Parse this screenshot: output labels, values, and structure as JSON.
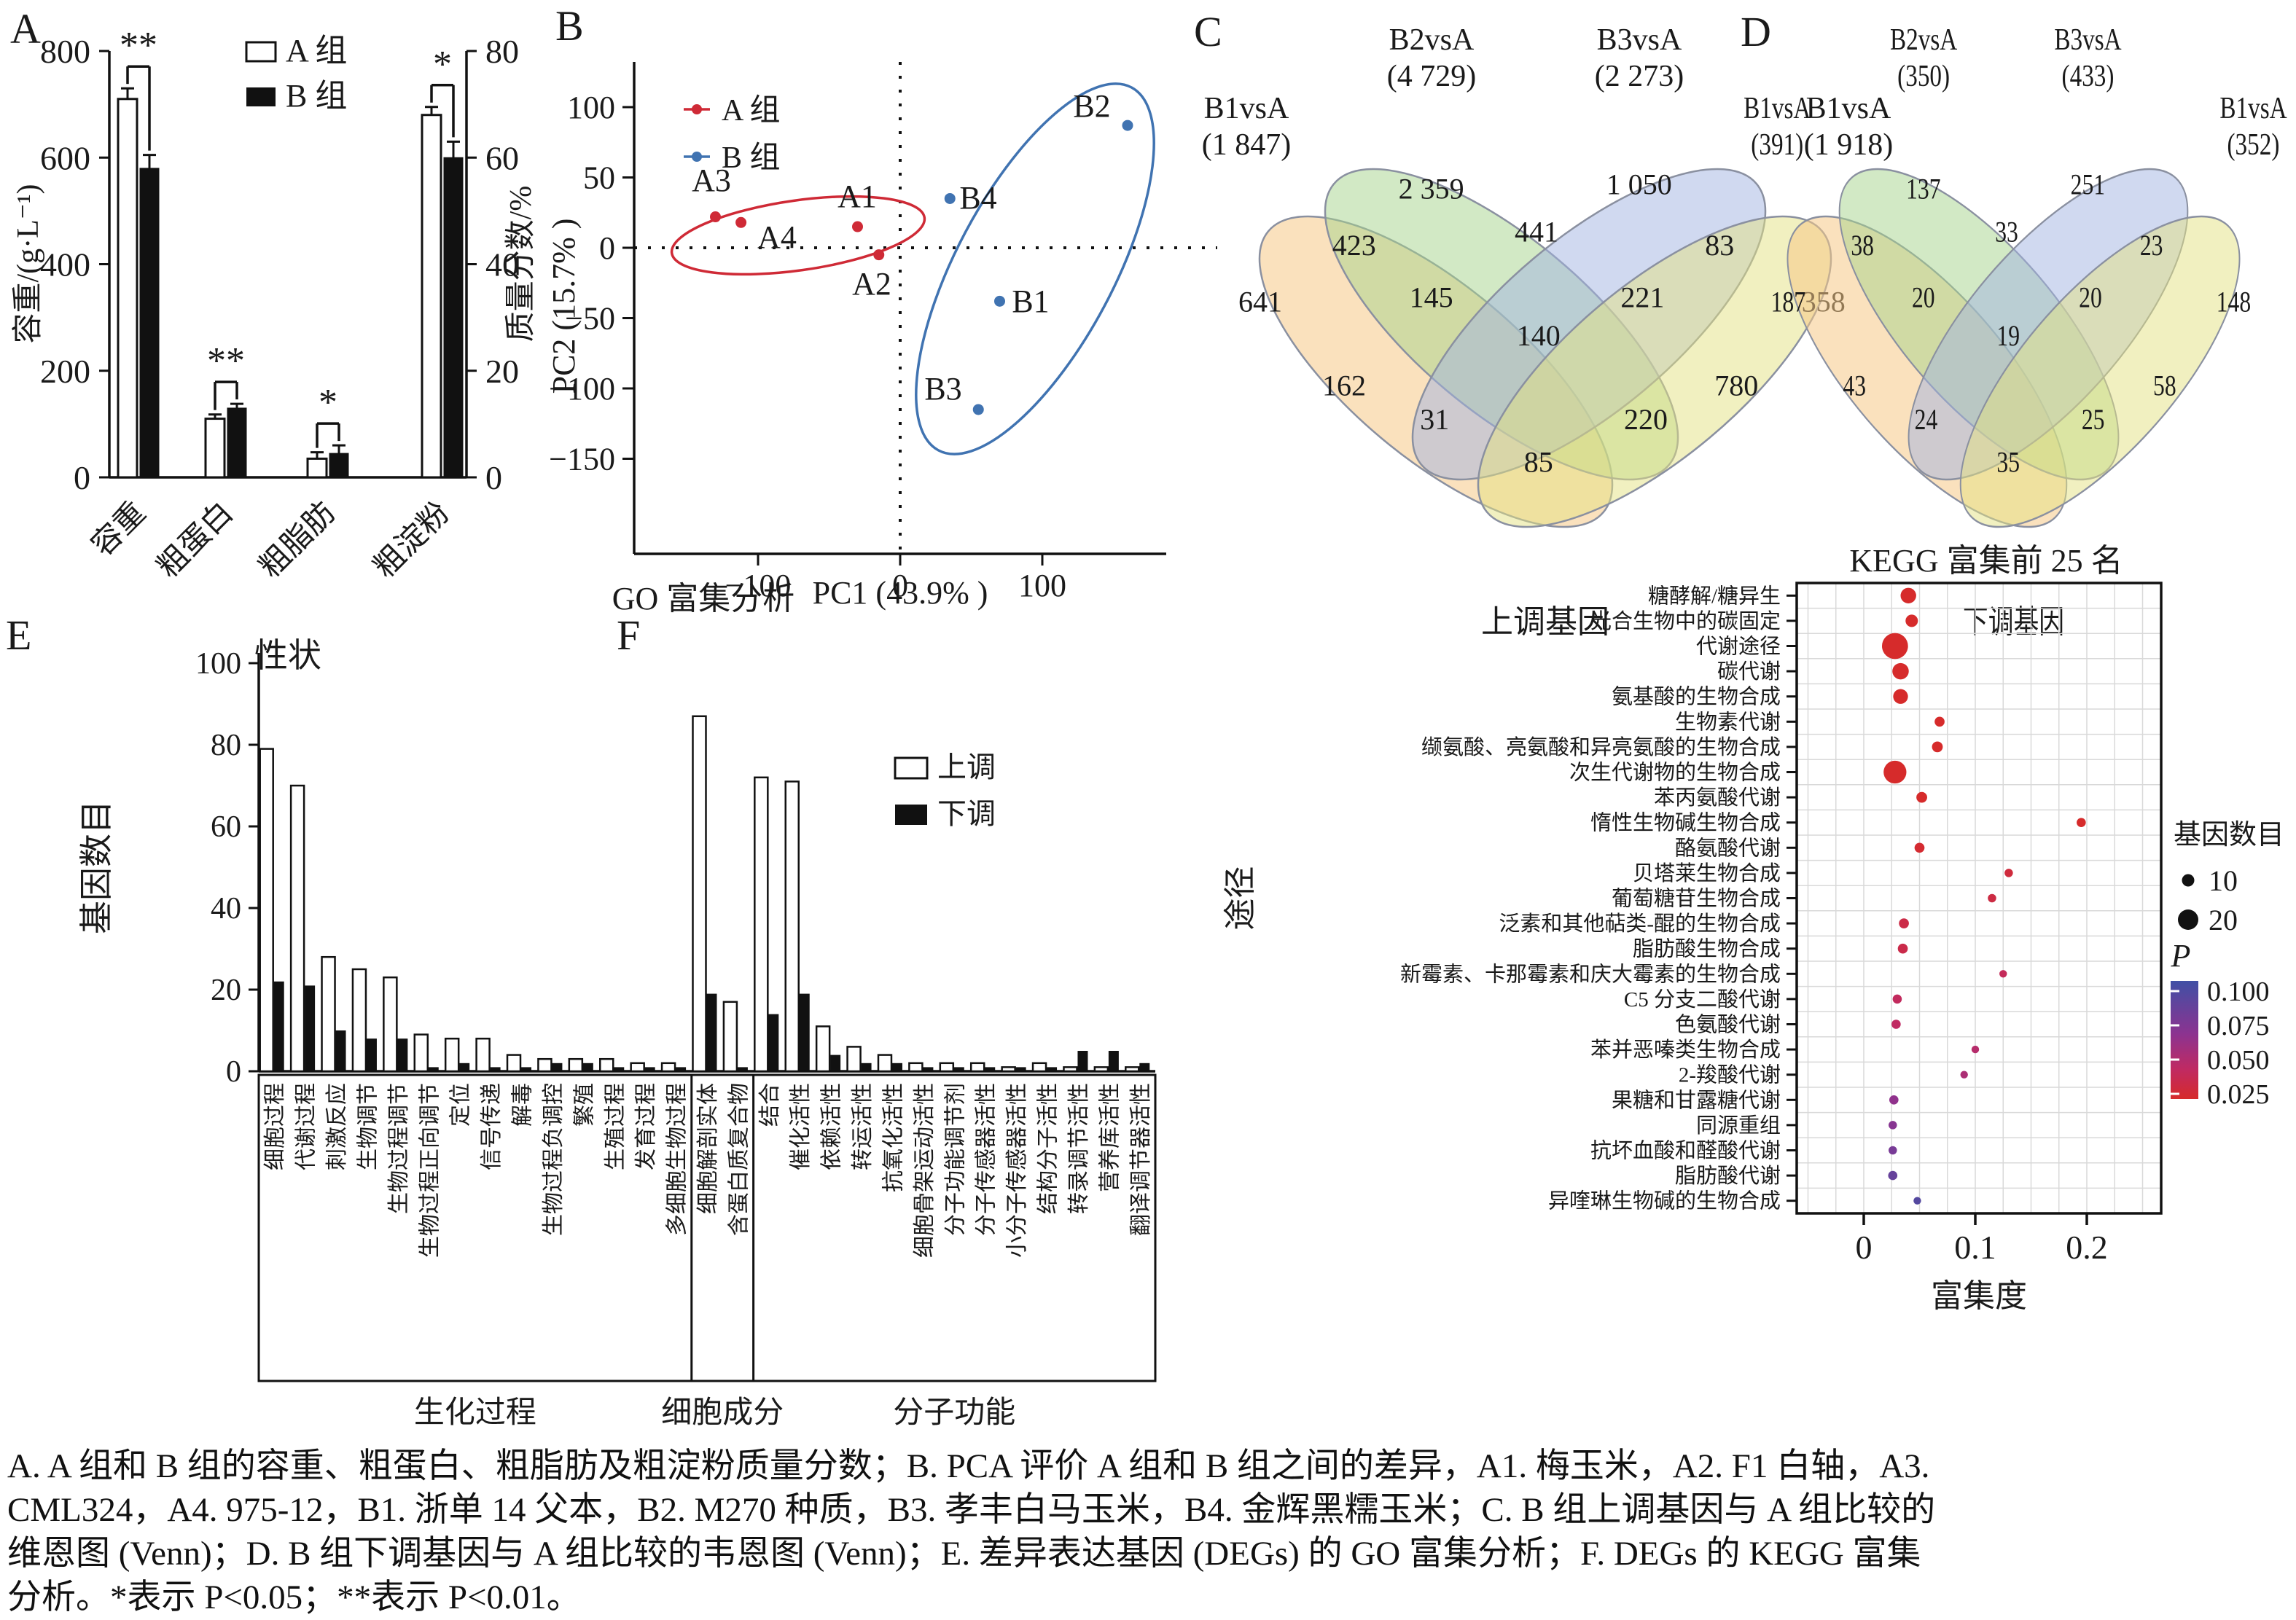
{
  "figure": {
    "panel_letters": [
      "A",
      "B",
      "C",
      "D",
      "E",
      "F"
    ],
    "caption_lines": [
      "A. A 组和 B 组的容重、粗蛋白、粗脂肪及粗淀粉质量分数；B. PCA 评价 A 组和 B 组之间的差异，A1. 梅玉米，A2. F1 白轴，A3.",
      "CML324，A4. 975-12，B1. 浙单 14 父本，B2. M270 种质，B3. 孝丰白马玉米，B4. 金辉黑糯玉米；C. B 组上调基因与 A 组比较的",
      "维恩图 (Venn)；D. B 组下调基因与 A 组比较的韦恩图 (Venn)；E. 差异表达基因 (DEGs) 的 GO 富集分析；F. DEGs 的 KEGG 富集",
      "分析。*表示 P<0.05；**表示 P<0.01。"
    ]
  },
  "colors": {
    "series_red": "#cf2a36",
    "series_blue": "#4073b1",
    "venn_fills": [
      "rgba(246,201,134,0.55)",
      "rgba(165,212,140,0.50)",
      "rgba(162,180,226,0.50)",
      "rgba(228,226,130,0.50)"
    ],
    "venn_stroke": "#8a90a0",
    "p_color_stops": [
      [
        0.015,
        "#d62b2b"
      ],
      [
        0.045,
        "#c02a62"
      ],
      [
        0.07,
        "#8c3390"
      ],
      [
        0.1,
        "#4050a5"
      ]
    ]
  },
  "chart_data": [
    {
      "id": "A",
      "type": "bar",
      "categories": [
        "容重",
        "粗蛋白",
        "粗脂肪",
        "粗淀粉"
      ],
      "category_axis": [
        "left",
        "right",
        "right",
        "right"
      ],
      "series": [
        {
          "name": "A 组",
          "fill": "white",
          "values": [
            710,
            11,
            3.5,
            68
          ],
          "errors": [
            20,
            0.8,
            1.2,
            1.5
          ]
        },
        {
          "name": "B 组",
          "fill": "black",
          "values": [
            580,
            13,
            4.5,
            60
          ],
          "errors": [
            25,
            0.8,
            1.5,
            3
          ]
        }
      ],
      "significance": [
        "**",
        "**",
        "*",
        "*"
      ],
      "ylabel_left": "容重/(g·L⁻¹)",
      "ylabel_right": "质量分数/%",
      "xlabel": "性状",
      "ylim_left": [
        0,
        800
      ],
      "yticks_left": [
        0,
        200,
        400,
        600,
        800
      ],
      "ylim_right": [
        0,
        80
      ],
      "yticks_right": [
        0,
        20,
        40,
        60,
        80
      ]
    },
    {
      "id": "B",
      "type": "scatter",
      "xlabel": "PC1 (43.9% )",
      "ylabel": "PC2 (15.7% )",
      "xticks": [
        "−100",
        "0",
        "100"
      ],
      "xtick_values": [
        -100,
        0,
        100
      ],
      "yticks": [
        "100",
        "50",
        "0",
        "−50",
        "−100",
        "−150"
      ],
      "ytick_values": [
        100,
        50,
        0,
        -50,
        -100,
        -150
      ],
      "legend": [
        "A 组",
        "B 组"
      ],
      "series": [
        {
          "name": "A 组",
          "color_key": "series_red",
          "points": [
            {
              "label": "A1",
              "x": -30,
              "y": 15
            },
            {
              "label": "A2",
              "x": -15,
              "y": -5
            },
            {
              "label": "A3",
              "x": -130,
              "y": 22
            },
            {
              "label": "A4",
              "x": -112,
              "y": 18
            }
          ]
        },
        {
          "name": "B 组",
          "color_key": "series_blue",
          "points": [
            {
              "label": "B1",
              "x": 70,
              "y": -38
            },
            {
              "label": "B2",
              "x": 160,
              "y": 87
            },
            {
              "label": "B3",
              "x": 55,
              "y": -115
            },
            {
              "label": "B4",
              "x": 35,
              "y": 35
            }
          ]
        }
      ]
    },
    {
      "id": "C",
      "type": "venn4",
      "bottom_caption": "上调基因",
      "sets": [
        {
          "name": "B1vsA",
          "count": "(1 847)"
        },
        {
          "name": "B2vsA",
          "count": "(4 729)"
        },
        {
          "name": "B3vsA",
          "count": "(2 273)"
        },
        {
          "name": "B1vsA",
          "count": "(1 918)"
        }
      ],
      "regions": [
        {
          "segment": "set1_only",
          "value": "641",
          "fx": 0.075,
          "fy": 0.38
        },
        {
          "segment": "set2_only",
          "value": "2 359",
          "fx": 0.33,
          "fy": 0.13
        },
        {
          "segment": "set3_only",
          "value": "1 050",
          "fx": 0.64,
          "fy": 0.12
        },
        {
          "segment": "set4_only",
          "value": "358",
          "fx": 0.915,
          "fy": 0.38
        },
        {
          "segment": "set1_set2",
          "value": "423",
          "fx": 0.215,
          "fy": 0.255
        },
        {
          "segment": "set2_set3",
          "value": "441",
          "fx": 0.487,
          "fy": 0.225
        },
        {
          "segment": "set3_set4",
          "value": "83",
          "fx": 0.76,
          "fy": 0.255
        },
        {
          "segment": "set1_set2_set3",
          "value": "145",
          "fx": 0.33,
          "fy": 0.37
        },
        {
          "segment": "set2_set3_set4",
          "value": "221",
          "fx": 0.645,
          "fy": 0.37
        },
        {
          "segment": "all_four",
          "value": "140",
          "fx": 0.49,
          "fy": 0.455
        },
        {
          "segment": "set1_set3",
          "value": "162",
          "fx": 0.2,
          "fy": 0.565
        },
        {
          "segment": "set2_set4",
          "value": "780",
          "fx": 0.785,
          "fy": 0.565
        },
        {
          "segment": "set1_set3_set4",
          "value": "31",
          "fx": 0.335,
          "fy": 0.64
        },
        {
          "segment": "set1_set2_set4",
          "value": "220",
          "fx": 0.65,
          "fy": 0.64
        },
        {
          "segment": "set1_set4",
          "value": "85",
          "fx": 0.49,
          "fy": 0.735
        }
      ]
    },
    {
      "id": "D",
      "type": "venn4",
      "bottom_caption": "下调基因",
      "sets": [
        {
          "name": "B1vsA",
          "count": "(391)"
        },
        {
          "name": "B2vsA",
          "count": "(350)"
        },
        {
          "name": "B3vsA",
          "count": "(433)"
        },
        {
          "name": "B1vsA",
          "count": "(352)"
        }
      ],
      "regions": [
        {
          "segment": "set1_only",
          "value": "187",
          "fx": 0.075,
          "fy": 0.38
        },
        {
          "segment": "set2_only",
          "value": "137",
          "fx": 0.33,
          "fy": 0.13
        },
        {
          "segment": "set3_only",
          "value": "251",
          "fx": 0.64,
          "fy": 0.12
        },
        {
          "segment": "set4_only",
          "value": "148",
          "fx": 0.915,
          "fy": 0.38
        },
        {
          "segment": "set1_set2",
          "value": "38",
          "fx": 0.215,
          "fy": 0.255
        },
        {
          "segment": "set2_set3",
          "value": "33",
          "fx": 0.487,
          "fy": 0.225
        },
        {
          "segment": "set3_set4",
          "value": "23",
          "fx": 0.76,
          "fy": 0.255
        },
        {
          "segment": "set1_set2_set3",
          "value": "20",
          "fx": 0.33,
          "fy": 0.37
        },
        {
          "segment": "set2_set3_set4",
          "value": "20",
          "fx": 0.645,
          "fy": 0.37
        },
        {
          "segment": "all_four",
          "value": "19",
          "fx": 0.49,
          "fy": 0.455
        },
        {
          "segment": "set1_set3",
          "value": "43",
          "fx": 0.2,
          "fy": 0.565
        },
        {
          "segment": "set2_set4",
          "value": "58",
          "fx": 0.785,
          "fy": 0.565
        },
        {
          "segment": "set1_set3_set4",
          "value": "24",
          "fx": 0.335,
          "fy": 0.64
        },
        {
          "segment": "set1_set2_set4",
          "value": "25",
          "fx": 0.65,
          "fy": 0.64
        },
        {
          "segment": "set1_set4",
          "value": "35",
          "fx": 0.49,
          "fy": 0.735
        }
      ]
    },
    {
      "id": "E",
      "type": "bar",
      "title": "GO 富集分析",
      "ylabel": "基因数目",
      "ylim": [
        0,
        100
      ],
      "yticks": [
        0,
        20,
        40,
        60,
        80,
        100
      ],
      "legend": [
        "上调",
        "下调"
      ],
      "groups": [
        {
          "name": "生化过程",
          "categories": [
            "细胞过程",
            "代谢过程",
            "刺激反应",
            "生物调节",
            "生物过程调节",
            "生物过程正向调节",
            "定位",
            "信号传递",
            "解毒",
            "生物过程负调控",
            "繁殖",
            "生殖过程",
            "发育过程",
            "多细胞生物过程"
          ],
          "up": [
            79,
            70,
            28,
            25,
            23,
            9,
            8,
            8,
            4,
            3,
            3,
            3,
            2,
            2
          ],
          "down": [
            22,
            21,
            10,
            8,
            8,
            1,
            2,
            1,
            1,
            2,
            2,
            1,
            1,
            1
          ]
        },
        {
          "name": "细胞成分",
          "categories": [
            "细胞解剖实体",
            "含蛋白质复合物"
          ],
          "up": [
            87,
            17
          ],
          "down": [
            19,
            1
          ]
        },
        {
          "name": "分子功能",
          "categories": [
            "结合",
            "催化活性",
            "依赖活性",
            "转运活性",
            "抗氧化活性",
            "细胞骨架运动活性",
            "分子功能调节剂",
            "分子传感器活性",
            "小分子传感器活性",
            "结构分子活性",
            "转录调节活性",
            "营养库活性",
            "翻译调节器活性"
          ],
          "up": [
            72,
            71,
            11,
            6,
            4,
            2,
            2,
            2,
            1,
            2,
            1,
            1,
            1
          ],
          "down": [
            14,
            19,
            4,
            2,
            2,
            1,
            1,
            1,
            1,
            1,
            5,
            5,
            2
          ]
        }
      ]
    },
    {
      "id": "F",
      "type": "scatter",
      "title": "KEGG 富集前 25 名",
      "xlabel": "富集度",
      "ylabel": "途径",
      "xticks": [
        "0",
        "0.1",
        "0.2"
      ],
      "xtick_values": [
        0,
        0.1,
        0.2
      ],
      "xlim": [
        -0.06,
        0.267
      ],
      "legend_size_title": "基因数目",
      "legend_sizes": [
        10,
        20
      ],
      "legend_p_label": "P",
      "colorbar_ticks": [
        "0.100",
        "0.075",
        "0.050",
        "0.025"
      ],
      "pathways": [
        {
          "name": "糖酵解/糖异生",
          "enrichment": 0.04,
          "genes": 14,
          "p": 0.004
        },
        {
          "name": "光合生物中的碳固定",
          "enrichment": 0.043,
          "genes": 10,
          "p": 0.004
        },
        {
          "name": "代谢途径",
          "enrichment": 0.028,
          "genes": 27,
          "p": 0.002
        },
        {
          "name": "碳代谢",
          "enrichment": 0.033,
          "genes": 15,
          "p": 0.004
        },
        {
          "name": "氨基酸的生物合成",
          "enrichment": 0.033,
          "genes": 13,
          "p": 0.006
        },
        {
          "name": "生物素代谢",
          "enrichment": 0.068,
          "genes": 7,
          "p": 0.008
        },
        {
          "name": "缬氨酸、亮氨酸和异亮氨酸的生物合成",
          "enrichment": 0.066,
          "genes": 8,
          "p": 0.01
        },
        {
          "name": "次生代谢物的生物合成",
          "enrichment": 0.028,
          "genes": 23,
          "p": 0.003
        },
        {
          "name": "苯丙氨酸代谢",
          "enrichment": 0.052,
          "genes": 8,
          "p": 0.012
        },
        {
          "name": "惰性生物碱生物合成",
          "enrichment": 0.195,
          "genes": 6,
          "p": 0.015
        },
        {
          "name": "酪氨酸代谢",
          "enrichment": 0.05,
          "genes": 7,
          "p": 0.018
        },
        {
          "name": "贝塔莱生物合成",
          "enrichment": 0.13,
          "genes": 5,
          "p": 0.025
        },
        {
          "name": "葡萄糖苷生物合成",
          "enrichment": 0.115,
          "genes": 5,
          "p": 0.028
        },
        {
          "name": "泛素和其他萜类-醌的生物合成",
          "enrichment": 0.036,
          "genes": 7,
          "p": 0.03
        },
        {
          "name": "脂肪酸生物合成",
          "enrichment": 0.035,
          "genes": 7,
          "p": 0.032
        },
        {
          "name": "新霉素、卡那霉素和庆大霉素的生物合成",
          "enrichment": 0.125,
          "genes": 4,
          "p": 0.04
        },
        {
          "name": "C5 分支二酸代谢",
          "enrichment": 0.03,
          "genes": 6,
          "p": 0.042
        },
        {
          "name": "色氨酸代谢",
          "enrichment": 0.029,
          "genes": 6,
          "p": 0.045
        },
        {
          "name": "苯并恶嗪类生物合成",
          "enrichment": 0.1,
          "genes": 4,
          "p": 0.05
        },
        {
          "name": "2-羧酸代谢",
          "enrichment": 0.09,
          "genes": 4,
          "p": 0.055
        },
        {
          "name": "果糖和甘露糖代谢",
          "enrichment": 0.027,
          "genes": 6,
          "p": 0.068
        },
        {
          "name": "同源重组",
          "enrichment": 0.026,
          "genes": 5,
          "p": 0.072
        },
        {
          "name": "抗坏血酸和醛酸代谢",
          "enrichment": 0.026,
          "genes": 5,
          "p": 0.078
        },
        {
          "name": "脂肪酸代谢",
          "enrichment": 0.026,
          "genes": 6,
          "p": 0.085
        },
        {
          "name": "异喹琳生物碱的生物合成",
          "enrichment": 0.048,
          "genes": 4,
          "p": 0.092
        }
      ]
    }
  ]
}
